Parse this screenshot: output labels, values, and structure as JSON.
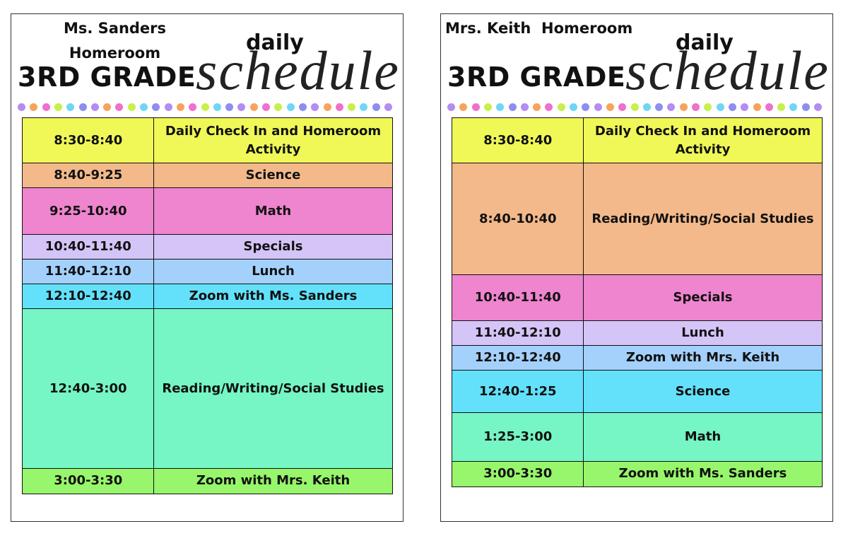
{
  "schedules": [
    {
      "header_lines": [
        "Ms. Sanders",
        "Homeroom"
      ],
      "grade": "3RD GRADE",
      "daily": "daily",
      "schedule": "schedule",
      "rows": [
        {
          "time": "8:30-8:40",
          "activity": "Daily Check In and Homeroom Activity",
          "color": "#f0f857"
        },
        {
          "time": "8:40-9:25",
          "activity": "Science",
          "color": "#f3b98a"
        },
        {
          "time": "9:25-10:40",
          "activity": "Math",
          "color": "#ef84cf"
        },
        {
          "time": "10:40-11:40",
          "activity": "Specials",
          "color": "#d5c4f8"
        },
        {
          "time": "11:40-12:10",
          "activity": "Lunch",
          "color": "#a3d1fb"
        },
        {
          "time": "12:10-12:40",
          "activity": "Zoom with Ms. Sanders",
          "color": "#63e1fb"
        },
        {
          "time": "12:40-3:00",
          "activity": "Reading/Writing/Social Studies",
          "color": "#75f6c4"
        },
        {
          "time": "3:00-3:30",
          "activity": "Zoom with Mrs. Keith",
          "color": "#97f66b"
        }
      ]
    },
    {
      "header_lines": [
        "Mrs. Keith  Homeroom"
      ],
      "grade": "3RD GRADE",
      "daily": "daily",
      "schedule": "schedule",
      "rows": [
        {
          "time": "8:30-8:40",
          "activity": "Daily Check In and Homeroom Activity",
          "color": "#f0f857"
        },
        {
          "time": "8:40-10:40",
          "activity": "Reading/Writing/Social Studies",
          "color": "#f3b98a"
        },
        {
          "time": "10:40-11:40",
          "activity": "Specials",
          "color": "#ef84cf"
        },
        {
          "time": "11:40-12:10",
          "activity": "Lunch",
          "color": "#d5c4f8"
        },
        {
          "time": "12:10-12:40",
          "activity": "Zoom with Mrs. Keith",
          "color": "#a3d1fb"
        },
        {
          "time": "12:40-1:25",
          "activity": "Science",
          "color": "#63e1fb"
        },
        {
          "time": "1:25-3:00",
          "activity": "Math",
          "color": "#75f6c4"
        },
        {
          "time": "3:00-3:30",
          "activity": "Zoom with Ms. Sanders",
          "color": "#97f66b"
        }
      ]
    }
  ]
}
